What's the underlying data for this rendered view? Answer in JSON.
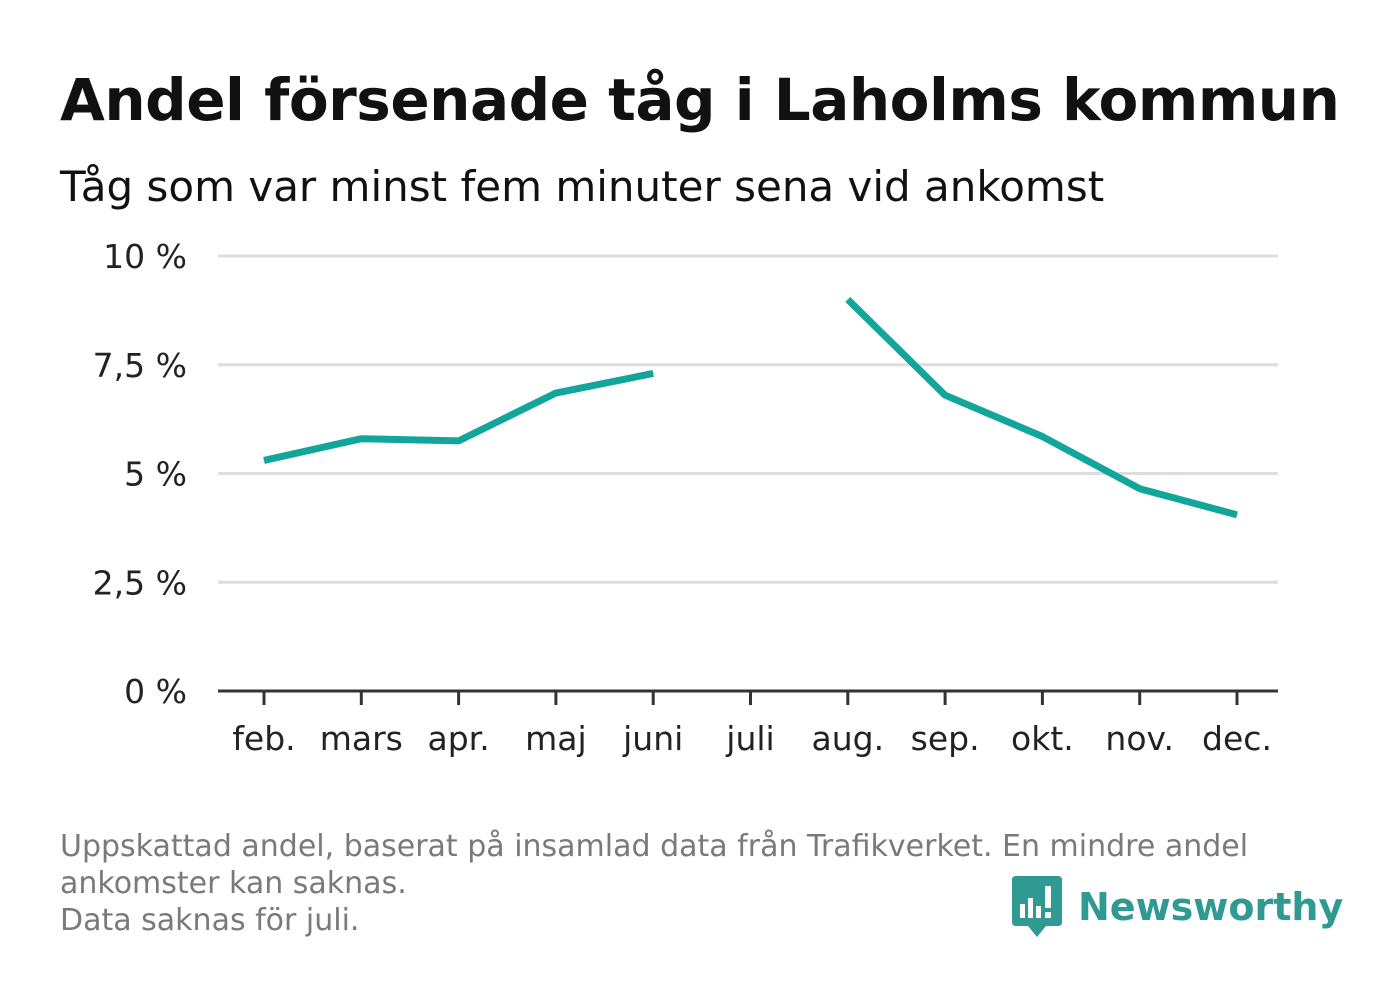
{
  "title": "Andel försenade tåg i Laholms kommun",
  "subtitle": "Tåg som var minst fem minuter sena vid ankomst",
  "footer": {
    "line1": "Uppskattad andel, baserat på insamlad data från Trafikverket. En mindre andel",
    "line2": "ankomster kan saknas.",
    "line3": "Data saknas för juli."
  },
  "logo": {
    "text": "Newsworthy",
    "icon": "bar-chart-speech-bubble-icon"
  },
  "colors": {
    "line": "#12a59b",
    "grid": "#dddddd",
    "axis": "#333333",
    "logo": "#2f9a91"
  },
  "chart_data": {
    "type": "line",
    "categories": [
      "feb.",
      "mars",
      "apr.",
      "maj",
      "juni",
      "juli",
      "aug.",
      "sep.",
      "okt.",
      "nov.",
      "dec."
    ],
    "series": [
      {
        "values": [
          5.3,
          5.8,
          5.75,
          6.85,
          7.3,
          null,
          9.0,
          6.8,
          5.85,
          4.65,
          4.05
        ]
      }
    ],
    "yticks": [
      0,
      2.5,
      5,
      7.5,
      10
    ],
    "ytick_labels": [
      "0 %",
      "2,5 %",
      "5 %",
      "7,5 %",
      "10 %"
    ],
    "ylim": [
      0,
      10
    ],
    "grid": true
  }
}
